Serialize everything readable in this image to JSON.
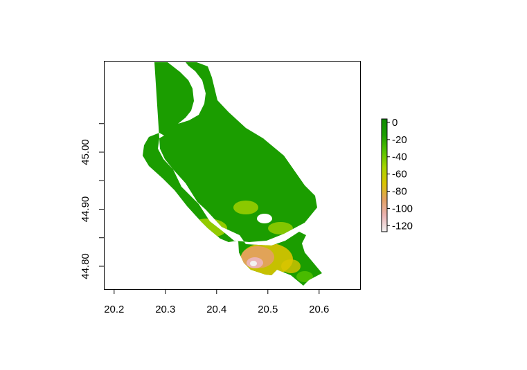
{
  "chart_data": {
    "type": "heatmap",
    "title": "",
    "xlabel": "",
    "ylabel": "",
    "xlim": [
      20.18,
      20.68
    ],
    "ylim": [
      44.76,
      45.16
    ],
    "x_ticks": [
      "20.2",
      "20.3",
      "20.4",
      "20.5",
      "20.6"
    ],
    "y_ticks": [
      "44.80",
      "44.90",
      "45.00"
    ],
    "legend": {
      "placement": "right",
      "ticks": [
        "0",
        "-20",
        "-40",
        "-60",
        "-80",
        "-100",
        "-120"
      ],
      "range": [
        -127,
        4
      ],
      "colors": [
        "#f2f2f2",
        "#ebb4b4",
        "#e3a062",
        "#d9c400",
        "#a7d400",
        "#55c300",
        "#1b9d00",
        "#0f8a00"
      ]
    },
    "grid": false
  }
}
